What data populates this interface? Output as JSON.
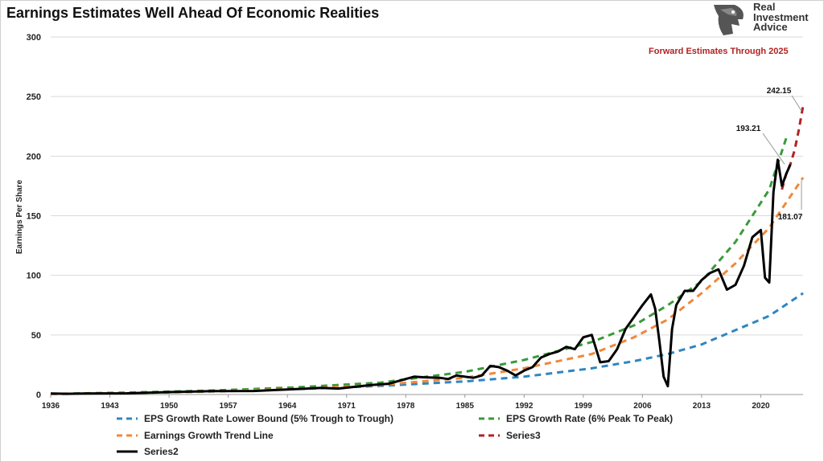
{
  "title": "Earnings Estimates Well Ahead Of Economic Realities",
  "logo": {
    "line1": "Real",
    "line2": "Investment",
    "line3": "Advice",
    "icon": "eagle-head-icon"
  },
  "annotation": "Forward Estimates Through 2025",
  "colors": {
    "lower": "#2e86c1",
    "peak": "#3a9a3a",
    "trend": "#f0883a",
    "series3": "#b22222",
    "series2": "#000000",
    "annotation": "#b22222"
  },
  "chart_data": {
    "type": "line",
    "title": "Earnings Estimates Well Ahead Of Economic Realities",
    "xlabel": "",
    "ylabel": "Earnings Per Share",
    "xlim": [
      1936,
      2025
    ],
    "ylim": [
      0,
      300
    ],
    "yticks": [
      0,
      50,
      100,
      150,
      200,
      250,
      300
    ],
    "xticks": [
      1936,
      1943,
      1950,
      1957,
      1964,
      1971,
      1978,
      1985,
      1992,
      1999,
      2006,
      2013,
      2020
    ],
    "grid": "horizontal",
    "legend_position": "bottom",
    "series": [
      {
        "name": "EPS Growth Rate Lower Bound (5% Trough to Trough)",
        "style": "dashed",
        "x": [
          1936,
          1945,
          1955,
          1965,
          1975,
          1985,
          1992,
          2000,
          2005,
          2009,
          2013,
          2017,
          2021,
          2025
        ],
        "y": [
          0.5,
          1.2,
          2.5,
          4.5,
          7.2,
          11,
          15,
          22,
          28,
          34,
          42,
          54,
          66,
          85
        ]
      },
      {
        "name": "EPS Growth Rate (6% Peak To Peak)",
        "style": "dashed",
        "x": [
          1936,
          1945,
          1955,
          1965,
          1975,
          1985,
          1992,
          2000,
          2005,
          2009,
          2013,
          2017,
          2021,
          2023
        ],
        "y": [
          0.5,
          1.6,
          3.3,
          6,
          10,
          19,
          29,
          44,
          58,
          75,
          95,
          128,
          172,
          215
        ]
      },
      {
        "name": "Earnings Growth Trend Line",
        "style": "dashed",
        "x": [
          1936,
          1945,
          1955,
          1965,
          1975,
          1985,
          1992,
          2000,
          2005,
          2009,
          2013,
          2017,
          2021,
          2025
        ],
        "y": [
          0.4,
          1.2,
          2.6,
          4.6,
          8,
          14,
          22,
          34,
          48,
          63,
          85,
          110,
          140,
          182
        ]
      },
      {
        "name": "Series3",
        "style": "dashed",
        "x": [
          2022.5,
          2023,
          2023.5,
          2024,
          2024.5,
          2025
        ],
        "y": [
          172,
          185,
          193.21,
          205,
          222,
          242.15
        ]
      },
      {
        "name": "Series2",
        "style": "solid",
        "x": [
          1936,
          1938,
          1940,
          1945,
          1950,
          1955,
          1960,
          1965,
          1968,
          1970,
          1972,
          1974,
          1976,
          1978,
          1979,
          1980,
          1982,
          1983,
          1984,
          1985,
          1986,
          1987,
          1988,
          1989,
          1990,
          1991,
          1992,
          1993,
          1994,
          1995,
          1996,
          1997,
          1998,
          1999,
          2000,
          2001,
          2002,
          2003,
          2004,
          2005,
          2006,
          2007,
          2007.5,
          2008,
          2008.5,
          2009,
          2009.5,
          2010,
          2011,
          2012,
          2013,
          2014,
          2015,
          2016,
          2017,
          2018,
          2019,
          2019.5,
          2020,
          2020.5,
          2021,
          2021.5,
          2022,
          2022.5,
          2023,
          2023.5
        ],
        "y": [
          0.8,
          0.6,
          0.9,
          1,
          2,
          2.8,
          3,
          4.5,
          5.5,
          5,
          6.5,
          8,
          9,
          13,
          15,
          14.5,
          14,
          13,
          16,
          15,
          14,
          16,
          24,
          23,
          20,
          16,
          20,
          23,
          31,
          34,
          36,
          40,
          38,
          48,
          50,
          27,
          28,
          38,
          55,
          65,
          75,
          84,
          72,
          45,
          15,
          7,
          55,
          75,
          87,
          87,
          96,
          102,
          105,
          88,
          92,
          108,
          132,
          135,
          138,
          98,
          94,
          170,
          197,
          175,
          185,
          193
        ]
      }
    ],
    "labels": [
      {
        "text": "242.15",
        "value": 242.15
      },
      {
        "text": "193.21",
        "value": 193.21
      },
      {
        "text": "181.07",
        "value": 181.07
      }
    ]
  },
  "legend": [
    {
      "label": "EPS Growth Rate Lower Bound (5% Trough to Trough)",
      "color": "#2e86c1",
      "dashed": true
    },
    {
      "label": "EPS Growth Rate (6% Peak To Peak)",
      "color": "#3a9a3a",
      "dashed": true
    },
    {
      "label": "Earnings Growth Trend Line",
      "color": "#f0883a",
      "dashed": true
    },
    {
      "label": "Series3",
      "color": "#b22222",
      "dashed": true
    },
    {
      "label": "Series2",
      "color": "#000000",
      "dashed": false
    }
  ]
}
